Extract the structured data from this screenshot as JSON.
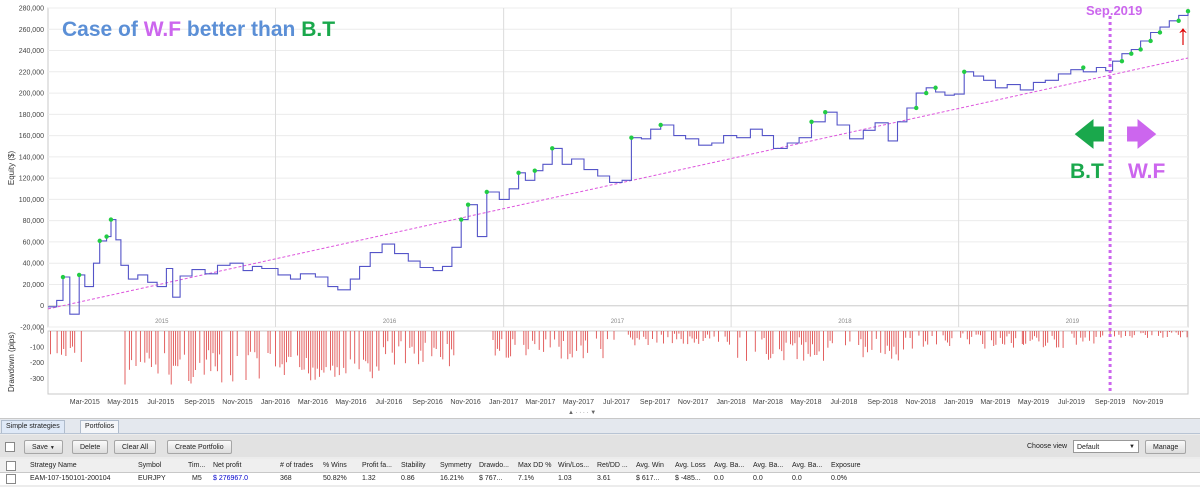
{
  "title": {
    "prefix": "Case of",
    "wf": "W.F",
    "middle": "better than",
    "bt": "B.T"
  },
  "annotations": {
    "split_label": "Sep.2019",
    "bt_label": "B.T",
    "wf_label": "W.F",
    "left_arrow_glyph": "🡄",
    "right_arrow_glyph": "🡆",
    "up_arrow_glyph": "↑"
  },
  "colors": {
    "title_blue": "#5b8fd6",
    "wf_purple": "#cc66ee",
    "bt_green": "#1aa84c",
    "equity_line": "#5454c8",
    "trend_line": "#dd55dd",
    "drawdown": "#e05050",
    "marker": "#22cc44",
    "red_arrow": "#dd0000"
  },
  "chart_data": [
    {
      "type": "line",
      "title": "",
      "xlabel": "",
      "ylabel": "Equity ($)",
      "ylim": [
        -20000,
        280000
      ],
      "yticks": [
        -20000,
        0,
        20000,
        40000,
        60000,
        80000,
        100000,
        120000,
        140000,
        160000,
        180000,
        200000,
        220000,
        240000,
        260000,
        280000
      ],
      "ytick_labels": [
        "-20,000",
        "0",
        "20,000",
        "40,000",
        "60,000",
        "80,000",
        "100,000",
        "120,000",
        "140,000",
        "160,000",
        "180,000",
        "200,000",
        "220,000",
        "240,000",
        "260,000",
        "280,000"
      ],
      "x_range": [
        "2015-01-01",
        "2020-01-04"
      ],
      "year_labels": [
        "2015",
        "2016",
        "2017",
        "2018",
        "2019"
      ],
      "grid": true,
      "series": [
        {
          "x": [
            "2015-01-01",
            "2015-01-15",
            "2015-01-25",
            "2015-02-05",
            "2015-02-20",
            "2015-03-01",
            "2015-03-15",
            "2015-03-25",
            "2015-04-05",
            "2015-04-12",
            "2015-04-20",
            "2015-04-28",
            "2015-05-10",
            "2015-05-25",
            "2015-06-10",
            "2015-06-25",
            "2015-07-10",
            "2015-07-20",
            "2015-08-01",
            "2015-08-20",
            "2015-09-10",
            "2015-09-30",
            "2015-10-20",
            "2015-11-10",
            "2015-11-25",
            "2015-12-10",
            "2016-01-05",
            "2016-01-25",
            "2016-02-10",
            "2016-03-05",
            "2016-03-25",
            "2016-04-10",
            "2016-04-30",
            "2016-05-15",
            "2016-06-01",
            "2016-06-20",
            "2016-07-10",
            "2016-08-01",
            "2016-08-20",
            "2016-09-10",
            "2016-09-25",
            "2016-10-10",
            "2016-10-25",
            "2016-11-05",
            "2016-11-20",
            "2016-12-05",
            "2016-12-25",
            "2017-01-10",
            "2017-01-25",
            "2017-02-05",
            "2017-02-20",
            "2017-03-05",
            "2017-03-20",
            "2017-04-05",
            "2017-04-20",
            "2017-05-10",
            "2017-06-01",
            "2017-06-20",
            "2017-07-10",
            "2017-07-25",
            "2017-08-10",
            "2017-08-25",
            "2017-09-10",
            "2017-10-01",
            "2017-10-20",
            "2017-11-10",
            "2017-12-01",
            "2017-12-20",
            "2018-01-10",
            "2018-02-01",
            "2018-02-20",
            "2018-03-10",
            "2018-04-01",
            "2018-04-20",
            "2018-05-10",
            "2018-06-01",
            "2018-06-20",
            "2018-07-10",
            "2018-08-01",
            "2018-08-20",
            "2018-09-10",
            "2018-09-25",
            "2018-10-10",
            "2018-10-25",
            "2018-11-10",
            "2018-11-25",
            "2018-12-10",
            "2018-12-25",
            "2019-01-10",
            "2019-01-25",
            "2019-02-10",
            "2019-03-01",
            "2019-03-20",
            "2019-04-10",
            "2019-05-01",
            "2019-05-20",
            "2019-06-10",
            "2019-06-30",
            "2019-07-20",
            "2019-08-10",
            "2019-08-25",
            "2019-09-05",
            "2019-09-20",
            "2019-10-05",
            "2019-10-20",
            "2019-11-05",
            "2019-11-20",
            "2019-12-05",
            "2019-12-20",
            "2020-01-04"
          ],
          "y": [
            -1000,
            5000,
            27000,
            -8000,
            29000,
            18000,
            40000,
            61000,
            65000,
            81000,
            62000,
            38000,
            25000,
            29000,
            22000,
            18000,
            35000,
            8000,
            28000,
            34000,
            30000,
            38000,
            40000,
            33000,
            37000,
            35000,
            29000,
            25000,
            30000,
            27000,
            18000,
            15000,
            25000,
            37000,
            50000,
            58000,
            49000,
            42000,
            36000,
            33000,
            37000,
            55000,
            81000,
            95000,
            65000,
            107000,
            100000,
            110000,
            125000,
            118000,
            127000,
            133000,
            148000,
            133000,
            138000,
            128000,
            122000,
            116000,
            118000,
            158000,
            157000,
            166000,
            170000,
            160000,
            157000,
            151000,
            153000,
            160000,
            158000,
            166000,
            160000,
            148000,
            153000,
            158000,
            173000,
            182000,
            170000,
            157000,
            165000,
            172000,
            155000,
            173000,
            186000,
            200000,
            205000,
            201000,
            198000,
            199000,
            220000,
            216000,
            212000,
            205000,
            208000,
            203000,
            210000,
            212000,
            218000,
            222000,
            220000,
            224000,
            221000,
            230000,
            237000,
            241000,
            249000,
            257000,
            262000,
            268000,
            273000,
            277000
          ]
        }
      ],
      "markers": [
        {
          "x": "2015-01-25",
          "y": 27000
        },
        {
          "x": "2015-02-20",
          "y": 29000
        },
        {
          "x": "2015-03-25",
          "y": 61000
        },
        {
          "x": "2015-04-05",
          "y": 65000
        },
        {
          "x": "2015-04-12",
          "y": 81000
        },
        {
          "x": "2016-10-25",
          "y": 81000
        },
        {
          "x": "2016-11-05",
          "y": 95000
        },
        {
          "x": "2016-12-05",
          "y": 107000
        },
        {
          "x": "2017-01-25",
          "y": 125000
        },
        {
          "x": "2017-02-20",
          "y": 127000
        },
        {
          "x": "2017-03-20",
          "y": 148000
        },
        {
          "x": "2017-07-25",
          "y": 158000
        },
        {
          "x": "2017-09-10",
          "y": 170000
        },
        {
          "x": "2018-05-10",
          "y": 173000
        },
        {
          "x": "2018-06-01",
          "y": 182000
        },
        {
          "x": "2018-10-25",
          "y": 186000
        },
        {
          "x": "2018-11-10",
          "y": 200000
        },
        {
          "x": "2018-11-25",
          "y": 205000
        },
        {
          "x": "2019-01-10",
          "y": 220000
        },
        {
          "x": "2019-07-20",
          "y": 224000
        },
        {
          "x": "2019-09-20",
          "y": 230000
        },
        {
          "x": "2019-10-05",
          "y": 237000
        },
        {
          "x": "2019-10-20",
          "y": 241000
        },
        {
          "x": "2019-11-05",
          "y": 249000
        },
        {
          "x": "2019-11-20",
          "y": 257000
        },
        {
          "x": "2019-12-20",
          "y": 268000
        },
        {
          "x": "2020-01-04",
          "y": 277000
        }
      ],
      "trendline": {
        "x": [
          "2015-01-01",
          "2020-01-04"
        ],
        "y": [
          -3000,
          233000
        ]
      }
    },
    {
      "type": "bar",
      "title": "",
      "xlabel": "",
      "ylabel": "Drawdown (pips)",
      "ylim": [
        -400,
        0
      ],
      "yticks": [
        0,
        -100,
        -200,
        -300
      ],
      "ytick_labels": [
        "0",
        "-100",
        "-200",
        "-300"
      ],
      "x_range": [
        "2015-01-01",
        "2020-01-04"
      ],
      "month_labels": [
        "Mar-2015",
        "May-2015",
        "Jul-2015",
        "Sep-2015",
        "Nov-2015",
        "Jan-2016",
        "Mar-2016",
        "May-2016",
        "Jul-2016",
        "Sep-2016",
        "Nov-2016",
        "Jan-2017",
        "Mar-2017",
        "May-2017",
        "Jul-2017",
        "Sep-2017",
        "Nov-2017",
        "Jan-2018",
        "Mar-2018",
        "May-2018",
        "Jul-2018",
        "Sep-2018",
        "Nov-2018",
        "Jan-2019",
        "Mar-2019",
        "May-2019",
        "Jul-2019",
        "Sep-2019",
        "Nov-2019"
      ],
      "segments": [
        {
          "from": "2015-01-05",
          "to": "2015-02-25",
          "min": 80,
          "max": 200
        },
        {
          "from": "2015-05-01",
          "to": "2015-12-25",
          "min": 120,
          "max": 350
        },
        {
          "from": "2016-01-01",
          "to": "2016-06-15",
          "min": 150,
          "max": 330
        },
        {
          "from": "2016-06-15",
          "to": "2016-10-15",
          "min": 60,
          "max": 230
        },
        {
          "from": "2016-12-15",
          "to": "2017-06-30",
          "min": 40,
          "max": 180
        },
        {
          "from": "2017-07-20",
          "to": "2017-12-31",
          "min": 15,
          "max": 100
        },
        {
          "from": "2018-01-01",
          "to": "2018-09-30",
          "min": 40,
          "max": 190
        },
        {
          "from": "2018-10-01",
          "to": "2019-04-15",
          "min": 15,
          "max": 120
        },
        {
          "from": "2019-04-15",
          "to": "2019-08-31",
          "min": 15,
          "max": 110
        },
        {
          "from": "2019-09-01",
          "to": "2020-01-04",
          "min": 5,
          "max": 45
        }
      ]
    }
  ],
  "tabs": [
    {
      "label": "Simple strategies",
      "active": true
    },
    {
      "label": "Portfolios",
      "active": false
    }
  ],
  "toolbar": {
    "save_label": "Save",
    "save_arrow": "▼",
    "delete_label": "Delete",
    "clear_all_label": "Clear All",
    "create_portfolio_label": "Create Portfolio",
    "choose_view_label": "Choose view",
    "view_value": "Default",
    "view_arrow": "▼",
    "manage_label": "Manage"
  },
  "table": {
    "headers": [
      "Strategy Name",
      "Symbol",
      "Tim...",
      "Net profit",
      "# of trades",
      "% Wins",
      "Profit fa...",
      "Stability",
      "Symmetry",
      "Drawdo...",
      "Max DD %",
      "Win/Los...",
      "Ret/DD ...",
      "Avg. Win",
      "Avg. Loss",
      "Avg. Ba...",
      "Avg. Ba...",
      "Avg. Ba...",
      "Exposure"
    ],
    "row": [
      "EAM-107-150101-200104",
      "EURJPY",
      "M5",
      "$ 276967.0",
      "368",
      "50.82%",
      "1.32",
      "0.86",
      "16.21%",
      "$ 767...",
      "7.1%",
      "1.03",
      "3.61",
      "$ 617...",
      "$ -485...",
      "0.0",
      "0.0",
      "0.0",
      "0.0%"
    ]
  },
  "splitter_glyph": "▲ · · · · ▼"
}
